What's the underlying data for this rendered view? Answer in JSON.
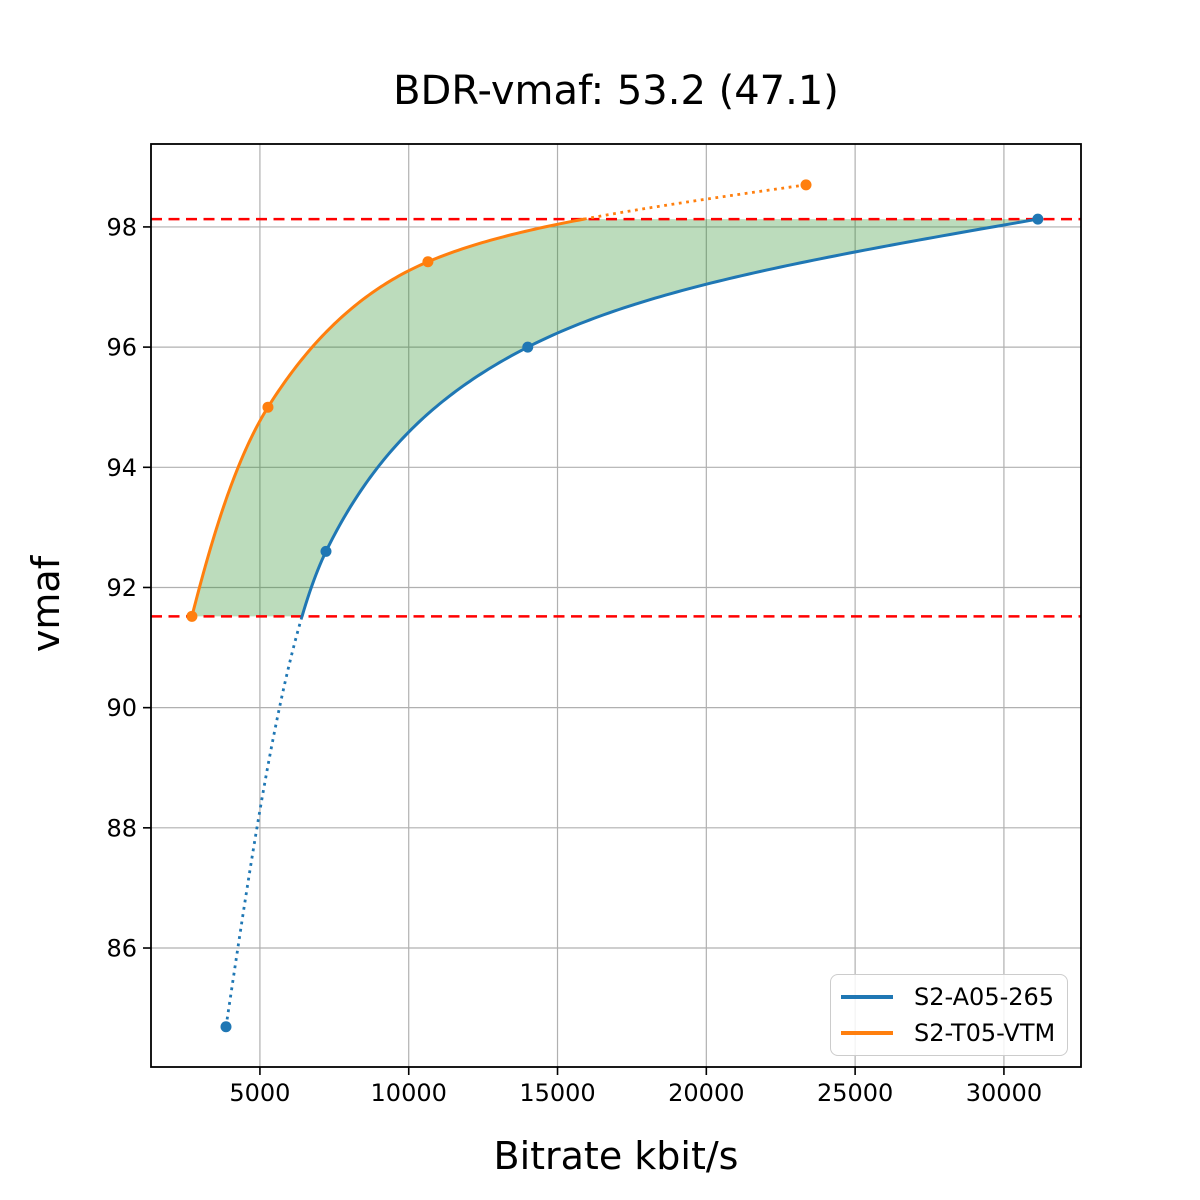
{
  "chart_data": {
    "type": "line",
    "title": "BDR-vmaf: 53.2 (47.1)",
    "xlabel": "Bitrate kbit/s",
    "ylabel": "vmaf",
    "xlim": [
      1340,
      32590
    ],
    "ylim": [
      84.02,
      99.38
    ],
    "xticks": [
      5000,
      10000,
      15000,
      20000,
      25000,
      30000
    ],
    "yticks": [
      86,
      88,
      90,
      92,
      94,
      96,
      98
    ],
    "grid": true,
    "grid_color": "#b0b0b0",
    "axis_color": "#000000",
    "interpolation": "pchip-log-x",
    "overlap_lines": {
      "color": "#ff0000",
      "style": "dashed",
      "top": 98.13,
      "bottom": 91.52
    },
    "series": [
      {
        "name": "S2-A05-265",
        "color": "#1f77b4",
        "dotted_end": "start",
        "points": [
          [
            3860,
            84.69
          ],
          [
            7220,
            92.6
          ],
          [
            14000,
            96.0
          ],
          [
            31140,
            98.13
          ]
        ]
      },
      {
        "name": "S2-T05-VTM",
        "color": "#ff7f0e",
        "dotted_end": "end",
        "points": [
          [
            2715,
            91.52
          ],
          [
            5270,
            95.0
          ],
          [
            10645,
            97.42
          ],
          [
            23350,
            98.7
          ]
        ]
      }
    ],
    "shaded_region": {
      "color": "#228b22",
      "opacity": 0.3,
      "upper": "S2-T05-VTM",
      "lower": "S2-A05-265"
    },
    "legend_position": "lower right"
  }
}
